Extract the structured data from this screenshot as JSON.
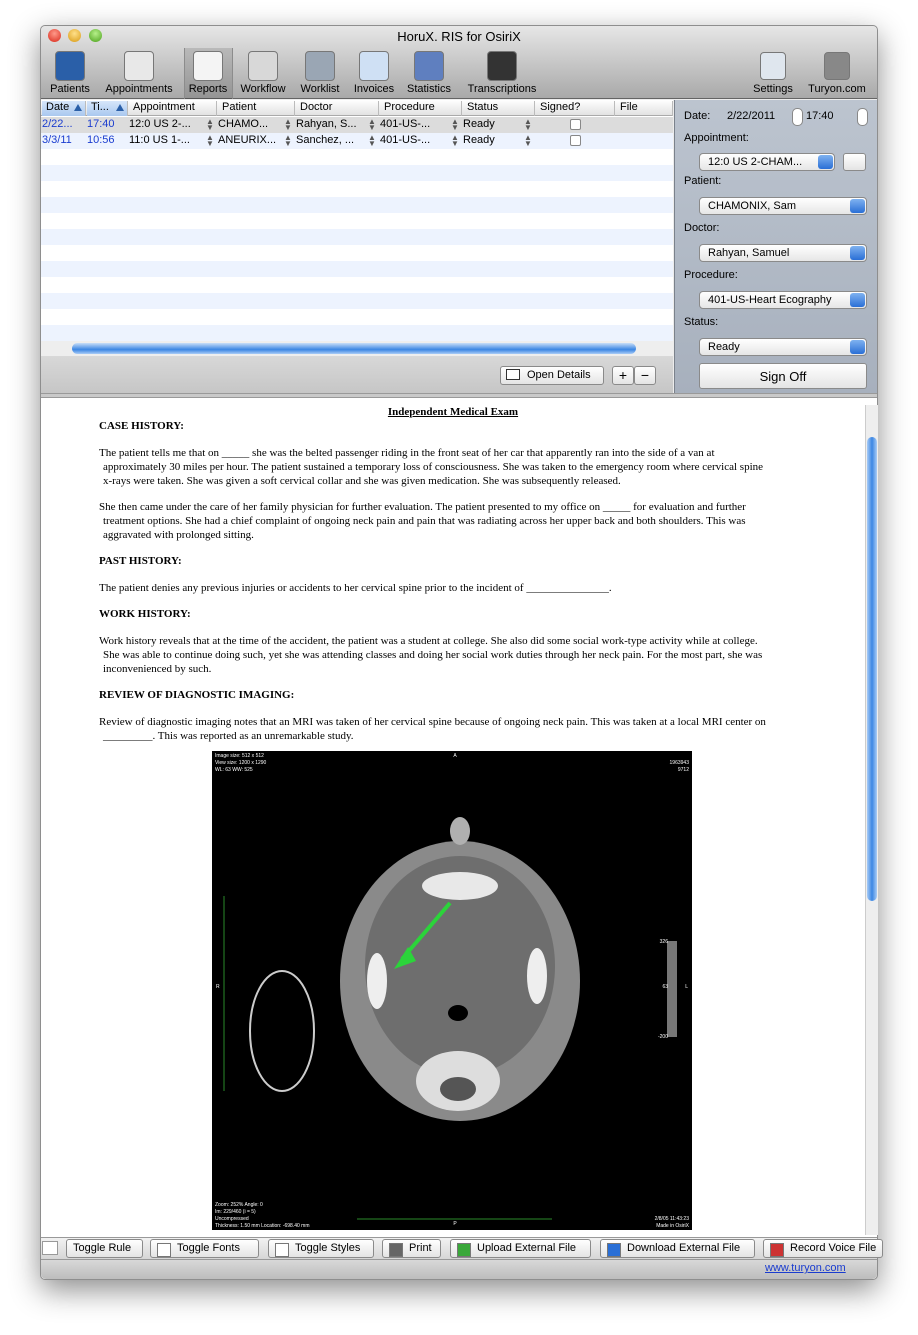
{
  "window": {
    "title": "HoruX. RIS for OsiriX"
  },
  "toolbar": {
    "left": [
      "Patients",
      "Appointments",
      "Reports",
      "Workflow",
      "Worklist",
      "Invoices",
      "Statistics",
      "Transcriptions"
    ],
    "right": [
      "Settings",
      "Turyon.com"
    ],
    "selected": "Reports"
  },
  "table": {
    "columns": [
      "Date",
      "Ti...",
      "Appointment",
      "Patient",
      "Doctor",
      "Procedure",
      "Status",
      "Signed?",
      "File"
    ],
    "rows": [
      [
        "2/22...",
        "17:40",
        "12:0 US 2-...",
        "CHAMO...",
        "Rahyan, S...",
        "401-US-...",
        "Ready"
      ],
      [
        "3/3/11",
        "10:56",
        "11:0 US 1-...",
        "ANEURIX...",
        "Sanchez, ...",
        "401-US-...",
        "Ready"
      ]
    ],
    "signed": [
      false,
      false
    ]
  },
  "buttons": {
    "open_details": "Open Details",
    "add": "+",
    "remove": "−"
  },
  "details": {
    "date_label": "Date:",
    "date": "2/22/2011",
    "time": "17:40",
    "appointment_label": "Appointment:",
    "appointment": "12:0 US 2-CHAM...",
    "patient_label": "Patient:",
    "patient": "CHAMONIX, Sam",
    "doctor_label": "Doctor:",
    "doctor": "Rahyan, Samuel",
    "procedure_label": "Procedure:",
    "procedure": "401-US-Heart Ecography",
    "status_label": "Status:",
    "status": "Ready",
    "sign_off": "Sign Off"
  },
  "document": {
    "title": "Independent Medical Exam",
    "sections": [
      {
        "heading": "CASE HISTORY:",
        "paragraphs": [
          "The patient tells me that on _____ she was the belted passenger riding in the front seat of her car that apparently ran into the side of a van at approximately 30 miles per hour. The patient sustained a temporary loss of consciousness. She was taken to the emergency room where cervical spine x-rays were taken. She was given a soft cervical collar and she was given medication. She was subsequently released.",
          "She then came under the care of her family physician for further evaluation. The patient presented to my office on _____ for evaluation and further treatment options. She had a chief complaint of ongoing neck pain and pain that was radiating across her upper back and both shoulders. This was aggravated with prolonged sitting."
        ]
      },
      {
        "heading": "PAST HISTORY:",
        "paragraphs": [
          "The patient denies any previous injuries or accidents to her cervical spine prior to the incident of _______________."
        ]
      },
      {
        "heading": "WORK HISTORY:",
        "paragraphs": [
          "Work history reveals that at the time of the accident, the patient was a student at college. She also did some social work-type activity while at college. She was able to continue doing such, yet she was attending classes and doing her social work duties through her neck pain. For the most part, she was inconvenienced by such."
        ]
      },
      {
        "heading": "REVIEW OF DIAGNOSTIC IMAGING:",
        "paragraphs": [
          "Review of diagnostic imaging notes that an MRI was taken of her cervical spine because of ongoing neck pain. This was taken at a local MRI center on _________. This was reported as an unremarkable study."
        ]
      }
    ],
    "image_overlay": [
      "Image size: 512 x 512",
      "View size: 1200 x 1290",
      "WL: 63 WW: 525",
      "1963943",
      "9712",
      "A",
      "P",
      "R",
      "L",
      "326",
      "63",
      "-200",
      "Zoom: 252% Angle: 0",
      "Im: 229/460 (i = 5)",
      "Uncompressed",
      "Thickness: 1.50 mm Location: -698.40 mm",
      "2/8/05 11:43:23",
      "Made in OsiriX"
    ]
  },
  "bottom_toolbar": [
    "Toggle Rule",
    "Toggle Fonts",
    "Toggle Styles",
    "Print",
    "Upload External File",
    "Download External File",
    "Record Voice File"
  ],
  "footer": {
    "link": "www.turyon.com"
  }
}
